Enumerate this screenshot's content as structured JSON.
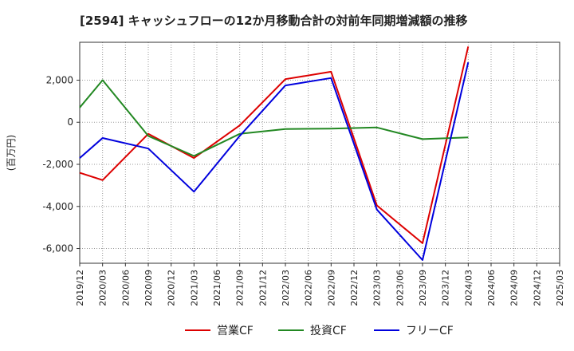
{
  "chart_data": {
    "type": "line",
    "title": "[2594]  キャッシュフローの12か月移動合計の対前年同期増減額の推移",
    "ylabel": "(百万円)",
    "xlabel": "",
    "ylim": [
      -6700,
      3800
    ],
    "yticks": [
      2000,
      0,
      -2000,
      -4000,
      -6000
    ],
    "ytick_labels": [
      "2,000",
      "0",
      "-2,000",
      "-4,000",
      "-6,000"
    ],
    "categories": [
      "2019/12",
      "2020/03",
      "2020/06",
      "2020/09",
      "2020/12",
      "2021/03",
      "2021/06",
      "2021/09",
      "2021/12",
      "2022/03",
      "2022/06",
      "2022/09",
      "2022/12",
      "2023/03",
      "2023/06",
      "2023/09",
      "2023/12",
      "2024/03",
      "2024/06",
      "2024/09",
      "2024/12",
      "2025/03"
    ],
    "grid": true,
    "legend_position": "bottom",
    "series": [
      {
        "name": "営業CF",
        "color": "#dd0000",
        "values": [
          -2400,
          -2750,
          null,
          -550,
          null,
          -1700,
          null,
          -150,
          null,
          2050,
          null,
          2400,
          null,
          -3950,
          null,
          -5750,
          null,
          3600,
          null,
          null,
          null,
          null
        ]
      },
      {
        "name": "投資CF",
        "color": "#228822",
        "values": [
          700,
          2000,
          null,
          -650,
          null,
          -1600,
          null,
          -550,
          null,
          -320,
          null,
          -300,
          null,
          -250,
          null,
          -800,
          null,
          -720,
          null,
          null,
          null,
          null
        ]
      },
      {
        "name": "フリーCF",
        "color": "#0000dd",
        "values": [
          -1700,
          -750,
          null,
          -1250,
          null,
          -3300,
          null,
          -650,
          null,
          1750,
          null,
          2100,
          null,
          -4150,
          null,
          -6550,
          null,
          2850,
          null,
          null,
          null,
          null
        ]
      }
    ]
  }
}
